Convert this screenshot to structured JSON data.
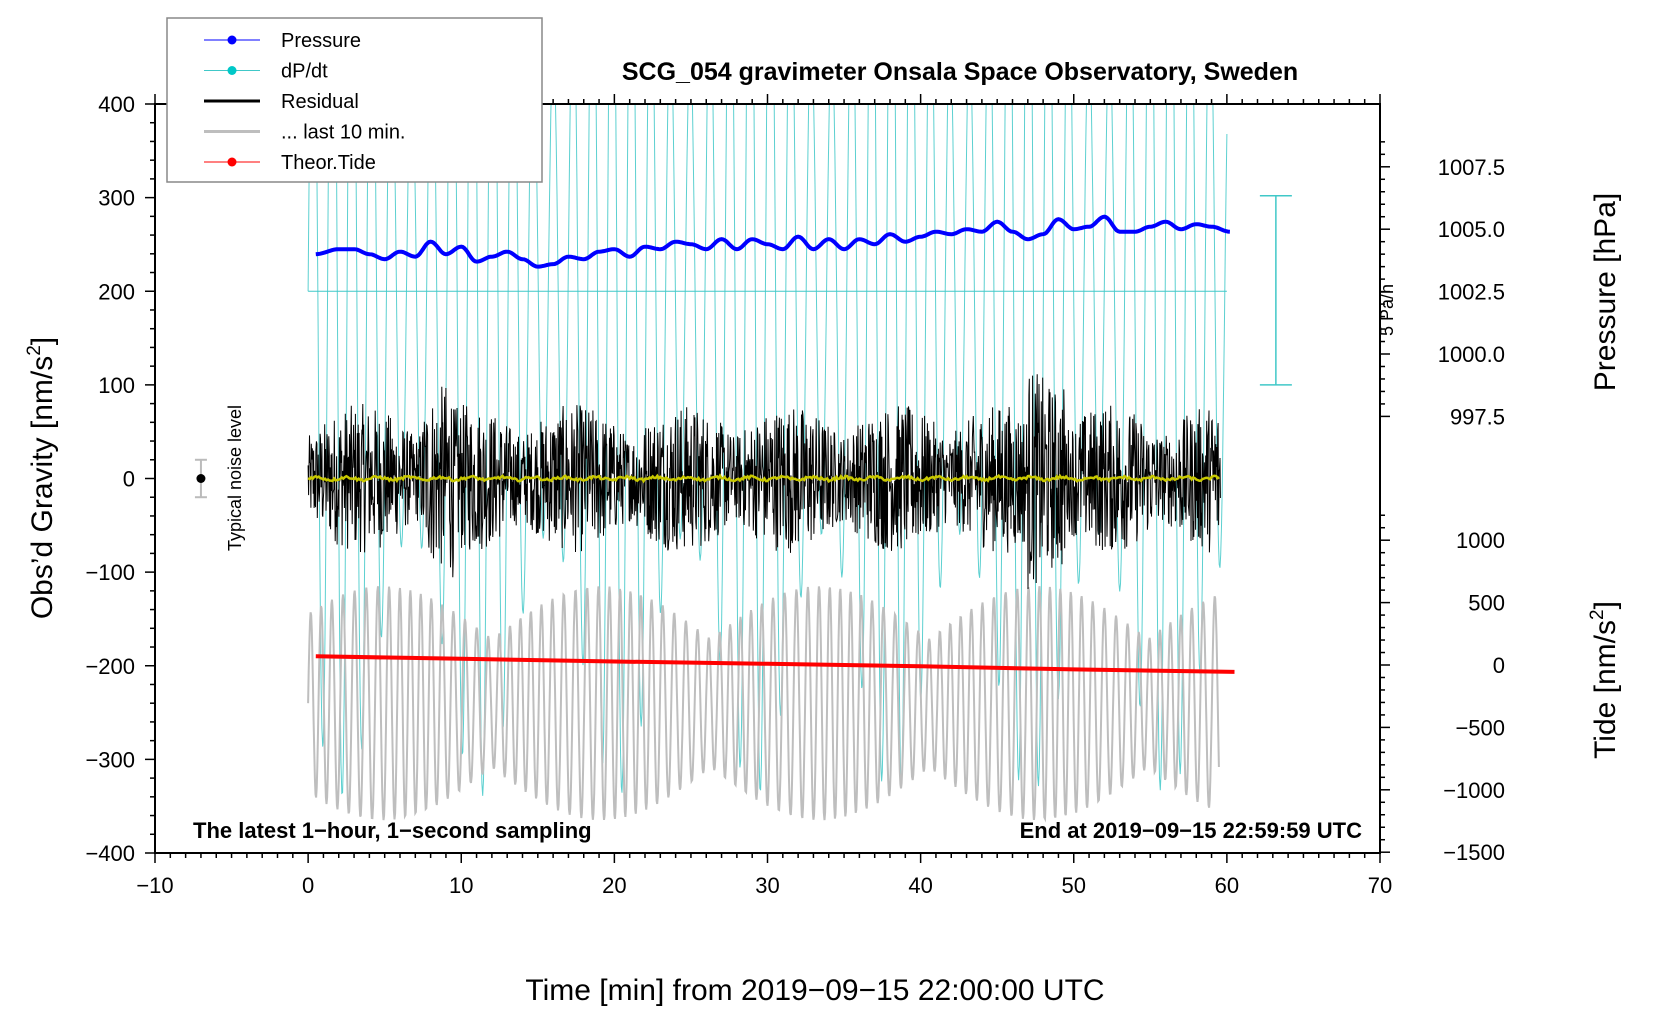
{
  "chart_data": {
    "type": "line",
    "title": "SCG_054 gravimeter Onsala Space Observatory, Sweden",
    "xlabel": "Time [min] from 2019−09−15 22:00:00 UTC",
    "ylabel_left": "Obs’d Gravity [nm/s²]",
    "ylabel_left_main": "Obs’d Gravity [nm/s",
    "ylabel_left_sup": "2",
    "ylabel_left_end": "]",
    "ylabel_right_pressure": "Pressure [hPa]",
    "ylabel_right_tide_main": "Tide [nm/s",
    "ylabel_right_tide_sup": "2",
    "ylabel_right_tide_end": "]",
    "xlim": [
      -10,
      70
    ],
    "ylim_left": [
      -400,
      400
    ],
    "pressure_axis_range": [
      997.5,
      1007.5
    ],
    "tide_axis_range": [
      -1500,
      1000
    ],
    "x_ticks": [
      "−10",
      "0",
      "10",
      "20",
      "30",
      "40",
      "50",
      "60",
      "70"
    ],
    "x_tick_values": [
      -10,
      0,
      10,
      20,
      30,
      40,
      50,
      60,
      70
    ],
    "y_left_ticks": [
      "400",
      "300",
      "200",
      "100",
      "0",
      "−100",
      "−200",
      "−300",
      "−400"
    ],
    "y_left_tick_values": [
      400,
      300,
      200,
      100,
      0,
      -100,
      -200,
      -300,
      -400
    ],
    "pressure_ticks": [
      "1007.5",
      "1005.0",
      "1002.5",
      "1000.0",
      "997.5"
    ],
    "pressure_tick_values": [
      1007.5,
      1005.0,
      1002.5,
      1000.0,
      997.5
    ],
    "tide_ticks": [
      "1000",
      "500",
      "0",
      "−500",
      "−1000",
      "−1500"
    ],
    "tide_tick_values": [
      1000,
      500,
      0,
      -500,
      -1000,
      -1500
    ],
    "grid": false,
    "legend": {
      "placement": "top-left",
      "entries": [
        {
          "label": "Pressure",
          "color": "#0000ff",
          "marker": true
        },
        {
          "label": "dP/dt",
          "color": "#00c8c8",
          "marker": true
        },
        {
          "label": "Residual",
          "color": "#000000",
          "marker": false
        },
        {
          "label": "... last 10 min.",
          "color": "#bebebe",
          "marker": false
        },
        {
          "label": "Theor.Tide",
          "color": "#ff0000",
          "marker": true
        }
      ]
    },
    "annotations": {
      "bottom_left": "The latest 1−hour, 1−second sampling",
      "bottom_right": "End at 2019−09−15 22:59:59 UTC",
      "noise_label": "Typical noise level",
      "dpdt_scale_label": "5 Pa/h"
    },
    "noise_level": {
      "x": -7,
      "y": 0,
      "error": 20
    },
    "dpdt_scale_bar": {
      "x": 63.2,
      "y_top_left_units": 302,
      "y_bottom_left_units": 100
    },
    "dpdt_zero_line_left_units": 200,
    "series": [
      {
        "name": "Pressure",
        "color": "#0000ff",
        "unit": "hPa",
        "x": [
          0.5,
          2,
          3,
          4,
          5,
          6,
          7,
          8,
          9,
          10,
          11,
          12,
          13,
          14,
          15,
          16,
          17,
          18,
          19,
          20,
          21,
          22,
          23,
          24,
          25,
          26,
          27,
          28,
          29,
          30,
          31,
          32,
          33,
          34,
          35,
          36,
          37,
          38,
          39,
          40,
          41,
          42,
          43,
          44,
          45,
          46,
          47,
          48,
          49,
          50,
          51,
          52,
          53,
          54,
          55,
          56,
          57,
          58,
          59,
          60.2
        ],
        "values": [
          1004.0,
          1004.2,
          1004.2,
          1004.0,
          1003.8,
          1004.1,
          1003.9,
          1004.5,
          1004.0,
          1004.3,
          1003.7,
          1003.9,
          1004.1,
          1003.8,
          1003.5,
          1003.6,
          1003.9,
          1003.8,
          1004.1,
          1004.2,
          1003.9,
          1004.3,
          1004.2,
          1004.5,
          1004.4,
          1004.2,
          1004.6,
          1004.2,
          1004.6,
          1004.4,
          1004.2,
          1004.7,
          1004.2,
          1004.6,
          1004.2,
          1004.6,
          1004.4,
          1004.8,
          1004.5,
          1004.7,
          1004.9,
          1004.8,
          1005.0,
          1004.9,
          1005.3,
          1004.9,
          1004.6,
          1004.8,
          1005.4,
          1005.0,
          1005.1,
          1005.5,
          1004.9,
          1004.9,
          1005.1,
          1005.3,
          1005.0,
          1005.2,
          1005.1,
          1004.9
        ]
      },
      {
        "name": "dP/dt",
        "color": "#00c8c8",
        "description": "rapidly oscillating trace clipped by the plot frame; zero line at left-axis 200",
        "x_range": [
          0,
          60
        ],
        "oscillation_period_min": 1.3,
        "amplitude_left_units": 400
      },
      {
        "name": "Residual",
        "color": "#000000",
        "x_range": [
          0,
          60
        ],
        "typical_range": [
          -100,
          100
        ],
        "extremes": [
          -175,
          180
        ]
      },
      {
        "name": "... last 10 min.",
        "color": "#bebebe",
        "description": "residual of the last 10 minutes, offset below",
        "x_range": [
          0,
          60
        ],
        "range_left_units": [
          -370,
          -115
        ]
      },
      {
        "name": "Smoothed residual",
        "color": "#c8c800",
        "x_range": [
          0,
          60
        ],
        "values_approx": 0
      },
      {
        "name": "Theor.Tide",
        "color": "#ff0000",
        "unit": "nm/s²",
        "x": [
          0.5,
          10,
          20,
          30,
          40,
          50,
          60.5
        ],
        "values": [
          70,
          50,
          28,
          10,
          -10,
          -35,
          -55
        ]
      }
    ]
  }
}
